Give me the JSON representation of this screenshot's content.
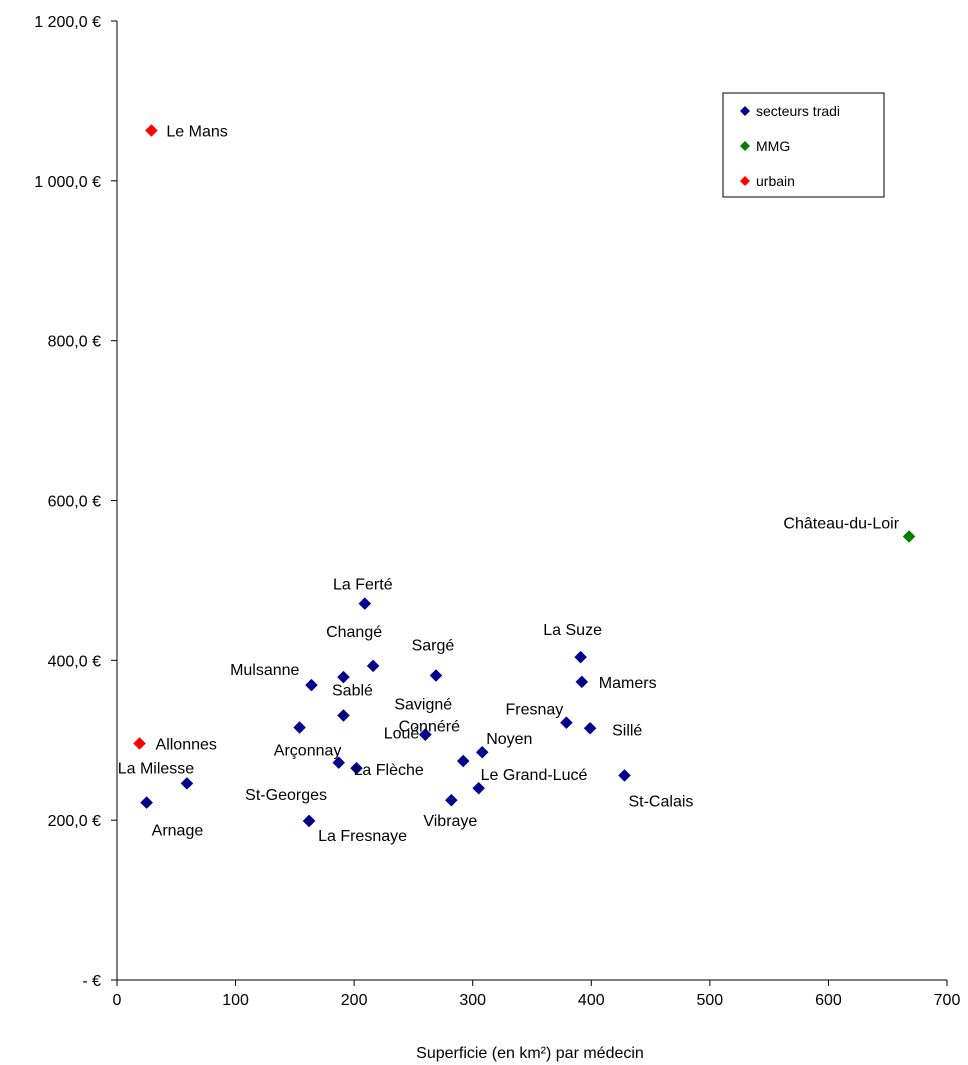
{
  "chart_data": {
    "type": "scatter",
    "title": "",
    "xlabel": "Superficie (en km²) par médecin",
    "ylabel": "",
    "xlim": [
      0,
      700
    ],
    "ylim": [
      0,
      1200
    ],
    "x_ticks": [
      {
        "value": 0,
        "label": "0"
      },
      {
        "value": 100,
        "label": "100"
      },
      {
        "value": 200,
        "label": "200"
      },
      {
        "value": 300,
        "label": "300"
      },
      {
        "value": 400,
        "label": "400"
      },
      {
        "value": 500,
        "label": "500"
      },
      {
        "value": 600,
        "label": "600"
      },
      {
        "value": 700,
        "label": "700"
      }
    ],
    "y_ticks": [
      {
        "value": 0,
        "label": "-  €"
      },
      {
        "value": 200,
        "label": "200,0 €"
      },
      {
        "value": 400,
        "label": "400,0 €"
      },
      {
        "value": 600,
        "label": "600,0 €"
      },
      {
        "value": 800,
        "label": "800,0 €"
      },
      {
        "value": 1000,
        "label": "1 000,0 €"
      },
      {
        "value": 1200,
        "label": "1 200,0 €"
      }
    ],
    "grid": false,
    "legend_position": "top-right",
    "series": [
      {
        "name": "secteurs tradi",
        "color": "#00008B",
        "points": [
          {
            "label": "La Ferté",
            "x": 209,
            "y": 471
          },
          {
            "label": "Changé",
            "x": 216,
            "y": 393
          },
          {
            "label": "Sargé",
            "x": 269,
            "y": 381
          },
          {
            "label": "Mulsanne",
            "x": 164,
            "y": 369
          },
          {
            "label": "",
            "x": 191,
            "y": 379
          },
          {
            "label": "Sablé",
            "x": 191,
            "y": 331
          },
          {
            "label": "Savigné",
            "x": 260,
            "y": 307
          },
          {
            "label": "Connéré",
            "x": 260,
            "y": 307
          },
          {
            "label": "Loué",
            "x": 260,
            "y": 307
          },
          {
            "label": "Arçonnay",
            "x": 154,
            "y": 316
          },
          {
            "label": "",
            "x": 187,
            "y": 272
          },
          {
            "label": "La Flèche",
            "x": 202,
            "y": 265
          },
          {
            "label": "La Milesse",
            "x": 59,
            "y": 246
          },
          {
            "label": "Arnage",
            "x": 25,
            "y": 222
          },
          {
            "label": "St-Georges",
            "x": 162,
            "y": 199
          },
          {
            "label": "La Fresnaye",
            "x": 162,
            "y": 199
          },
          {
            "label": "Noyen",
            "x": 308,
            "y": 285
          },
          {
            "label": "",
            "x": 292,
            "y": 274
          },
          {
            "label": "Le Grand-Lucé",
            "x": 305,
            "y": 240
          },
          {
            "label": "Vibraye",
            "x": 282,
            "y": 225
          },
          {
            "label": "La Suze",
            "x": 391,
            "y": 404
          },
          {
            "label": "Mamers",
            "x": 392,
            "y": 373
          },
          {
            "label": "Fresnay",
            "x": 379,
            "y": 322
          },
          {
            "label": "Sillé",
            "x": 399,
            "y": 315
          },
          {
            "label": "St-Calais",
            "x": 428,
            "y": 256
          }
        ]
      },
      {
        "name": "MMG",
        "color": "#008000",
        "points": [
          {
            "label": "Château-du-Loir",
            "x": 668,
            "y": 555
          }
        ]
      },
      {
        "name": "urbain",
        "color": "#FF0000",
        "points": [
          {
            "label": "Le Mans",
            "x": 29,
            "y": 1063
          },
          {
            "label": "Allonnes",
            "x": 19,
            "y": 296
          }
        ]
      }
    ]
  }
}
